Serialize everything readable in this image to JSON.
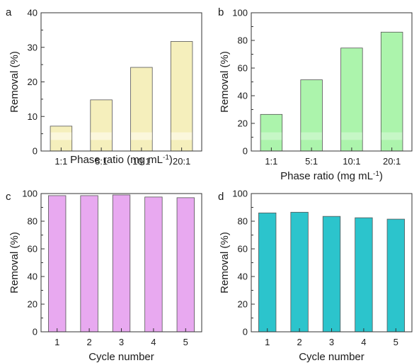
{
  "chart_data": [
    {
      "panel": "a",
      "type": "bar",
      "categories": [
        "1:1",
        "5:1",
        "10:1",
        "20:1"
      ],
      "values": [
        7.2,
        14.8,
        24.2,
        31.7
      ],
      "ylim": [
        0,
        40
      ],
      "yticks": [
        0,
        10,
        20,
        30,
        40
      ],
      "ylabel": "Removal (%)",
      "xlabel": "Phase ratio (mg mL",
      "xlabel_sup": "-1",
      "xlabel_end": ")",
      "bar_color": "#f5efbc",
      "bar_highlight": "#fbf7dc",
      "grid": false
    },
    {
      "panel": "b",
      "type": "bar",
      "categories": [
        "1:1",
        "5:1",
        "10:1",
        "20:1"
      ],
      "values": [
        26.5,
        51.5,
        74.5,
        86.0
      ],
      "ylim": [
        0,
        100
      ],
      "yticks": [
        0,
        20,
        40,
        60,
        80,
        100
      ],
      "ylabel": "Removal (%)",
      "xlabel": "Phase ratio (mg mL",
      "xlabel_sup": "-1",
      "xlabel_end": ")",
      "bar_color": "#acf4ac",
      "bar_highlight": "#c6f7c6",
      "grid": false
    },
    {
      "panel": "c",
      "type": "bar",
      "categories": [
        "1",
        "2",
        "3",
        "4",
        "5"
      ],
      "values": [
        98.5,
        98.5,
        99.0,
        97.5,
        97.0
      ],
      "ylim": [
        0,
        100
      ],
      "yticks": [
        0,
        20,
        40,
        60,
        80,
        100
      ],
      "ylabel": "Removal (%)",
      "xlabel": "Cycle number",
      "bar_color": "#e8a9f0",
      "grid": false
    },
    {
      "panel": "d",
      "type": "bar",
      "categories": [
        "1",
        "2",
        "3",
        "4",
        "5"
      ],
      "values": [
        86.0,
        86.5,
        83.5,
        82.5,
        81.5
      ],
      "ylim": [
        0,
        100
      ],
      "yticks": [
        0,
        20,
        40,
        60,
        80,
        100
      ],
      "ylabel": "Removal (%)",
      "xlabel": "Cycle number",
      "bar_color": "#2cc4cc",
      "grid": false
    }
  ]
}
